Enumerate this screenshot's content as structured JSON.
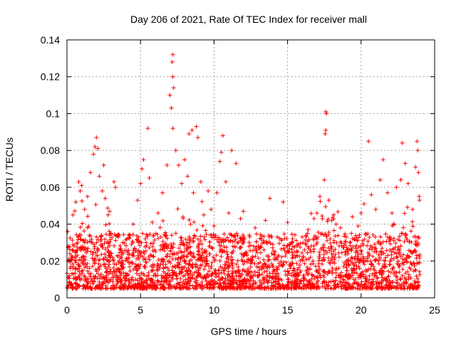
{
  "chart_data": {
    "type": "scatter",
    "title": "Day 206 of 2021, Rate Of TEC Index for receiver mall",
    "xlabel": "GPS time / hours",
    "ylabel": "ROTI / TECUs",
    "xlim": [
      0,
      25
    ],
    "ylim": [
      0,
      0.14
    ],
    "x_ticks": [
      0,
      5,
      10,
      15,
      20,
      25
    ],
    "x_tick_labels": [
      "0",
      "5",
      "10",
      "15",
      "20",
      "25"
    ],
    "y_ticks": [
      0,
      0.02,
      0.04,
      0.06,
      0.08,
      0.1,
      0.12,
      0.14
    ],
    "y_tick_labels": [
      "0",
      "0.02",
      "0.04",
      "0.06",
      "0.08",
      "0.1",
      "0.12",
      "0.14"
    ],
    "grid": true,
    "marker": "+",
    "marker_color": "#ff0000",
    "series": [
      {
        "name": "ROTI",
        "points": [
          [
            0.05,
            0.036
          ],
          [
            0.1,
            0.028
          ],
          [
            0.2,
            0.024
          ],
          [
            0.4,
            0.045
          ],
          [
            0.6,
            0.052
          ],
          [
            0.8,
            0.063
          ],
          [
            0.9,
            0.058
          ],
          [
            1.0,
            0.061
          ],
          [
            1.2,
            0.048
          ],
          [
            1.4,
            0.055
          ],
          [
            1.6,
            0.068
          ],
          [
            1.8,
            0.078
          ],
          [
            1.9,
            0.082
          ],
          [
            2.0,
            0.087
          ],
          [
            2.1,
            0.081
          ],
          [
            2.2,
            0.066
          ],
          [
            2.4,
            0.058
          ],
          [
            2.5,
            0.072
          ],
          [
            2.6,
            0.054
          ],
          [
            2.8,
            0.045
          ],
          [
            3.0,
            0.035
          ],
          [
            3.2,
            0.063
          ],
          [
            3.3,
            0.06
          ],
          [
            3.5,
            0.033
          ],
          [
            3.8,
            0.03
          ],
          [
            4.2,
            0.034
          ],
          [
            4.5,
            0.04
          ],
          [
            4.8,
            0.053
          ],
          [
            5.0,
            0.062
          ],
          [
            5.1,
            0.07
          ],
          [
            5.2,
            0.075
          ],
          [
            5.5,
            0.092
          ],
          [
            5.6,
            0.065
          ],
          [
            5.8,
            0.041
          ],
          [
            6.2,
            0.046
          ],
          [
            6.5,
            0.057
          ],
          [
            6.8,
            0.072
          ],
          [
            7.0,
            0.11
          ],
          [
            7.1,
            0.103
          ],
          [
            7.2,
            0.132
          ],
          [
            7.15,
            0.128
          ],
          [
            7.2,
            0.12
          ],
          [
            7.25,
            0.114
          ],
          [
            7.2,
            0.092
          ],
          [
            7.4,
            0.08
          ],
          [
            7.6,
            0.072
          ],
          [
            7.8,
            0.062
          ],
          [
            8.0,
            0.075
          ],
          [
            8.2,
            0.066
          ],
          [
            8.3,
            0.089
          ],
          [
            8.5,
            0.091
          ],
          [
            8.6,
            0.057
          ],
          [
            8.8,
            0.093
          ],
          [
            8.9,
            0.087
          ],
          [
            9.1,
            0.063
          ],
          [
            9.3,
            0.045
          ],
          [
            9.6,
            0.058
          ],
          [
            9.8,
            0.048
          ],
          [
            10.0,
            0.039
          ],
          [
            10.2,
            0.057
          ],
          [
            10.4,
            0.074
          ],
          [
            10.5,
            0.079
          ],
          [
            10.6,
            0.088
          ],
          [
            10.8,
            0.063
          ],
          [
            11.0,
            0.046
          ],
          [
            11.2,
            0.08
          ],
          [
            11.5,
            0.073
          ],
          [
            11.8,
            0.043
          ],
          [
            12.0,
            0.047
          ],
          [
            12.4,
            0.034
          ],
          [
            12.8,
            0.038
          ],
          [
            13.2,
            0.032
          ],
          [
            13.5,
            0.042
          ],
          [
            13.8,
            0.054
          ],
          [
            14.0,
            0.029
          ],
          [
            14.3,
            0.033
          ],
          [
            14.7,
            0.052
          ],
          [
            15.0,
            0.041
          ],
          [
            15.3,
            0.03
          ],
          [
            15.7,
            0.025
          ],
          [
            16.0,
            0.033
          ],
          [
            16.4,
            0.037
          ],
          [
            16.8,
            0.043
          ],
          [
            17.0,
            0.046
          ],
          [
            17.2,
            0.055
          ],
          [
            17.5,
            0.064
          ],
          [
            17.55,
            0.089
          ],
          [
            17.6,
            0.091
          ],
          [
            17.6,
            0.101
          ],
          [
            17.65,
            0.1
          ],
          [
            17.8,
            0.053
          ],
          [
            18.0,
            0.042
          ],
          [
            18.3,
            0.04
          ],
          [
            18.6,
            0.038
          ],
          [
            19.0,
            0.033
          ],
          [
            19.4,
            0.044
          ],
          [
            19.8,
            0.039
          ],
          [
            20.0,
            0.046
          ],
          [
            20.2,
            0.051
          ],
          [
            20.5,
            0.085
          ],
          [
            20.7,
            0.056
          ],
          [
            21.0,
            0.048
          ],
          [
            21.3,
            0.064
          ],
          [
            21.5,
            0.075
          ],
          [
            21.8,
            0.057
          ],
          [
            22.1,
            0.046
          ],
          [
            22.4,
            0.06
          ],
          [
            22.7,
            0.064
          ],
          [
            22.8,
            0.084
          ],
          [
            23.0,
            0.073
          ],
          [
            23.2,
            0.062
          ],
          [
            23.5,
            0.048
          ],
          [
            23.7,
            0.071
          ],
          [
            23.8,
            0.085
          ],
          [
            23.85,
            0.08
          ],
          [
            23.9,
            0.068
          ],
          [
            23.95,
            0.055
          ]
        ]
      }
    ],
    "noise_band": {
      "description": "dense cloud of points between roughly 0.005 and 0.035 across 0-24 h",
      "x_range": [
        0,
        24
      ],
      "y_min": 0.005,
      "y_max": 0.035
    }
  }
}
